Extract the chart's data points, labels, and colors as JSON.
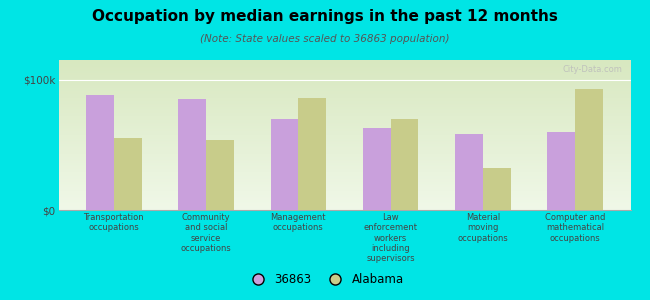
{
  "title": "Occupation by median earnings in the past 12 months",
  "subtitle": "(Note: State values scaled to 36863 population)",
  "categories": [
    "Transportation\noccupations",
    "Community\nand social\nservice\noccupations",
    "Management\noccupations",
    "Law\nenforcement\nworkers\nincluding\nsupervisors",
    "Material\nmoving\noccupations",
    "Computer and\nmathematical\noccupations"
  ],
  "values_36863": [
    88000,
    85000,
    70000,
    63000,
    58000,
    60000
  ],
  "values_alabama": [
    55000,
    54000,
    86000,
    70000,
    32000,
    93000
  ],
  "color_36863": "#c9a0dc",
  "color_alabama": "#c8cc8a",
  "yticks": [
    0,
    100000
  ],
  "ytick_labels": [
    "$0",
    "$100k"
  ],
  "ylim": [
    0,
    115000
  ],
  "background_color": "#00e5e5",
  "plot_bg_top": "#f0f8e8",
  "plot_bg_bottom": "#d8e8c0",
  "watermark": "City-Data.com",
  "legend_label_1": "36863",
  "legend_label_2": "Alabama",
  "bar_width": 0.3
}
